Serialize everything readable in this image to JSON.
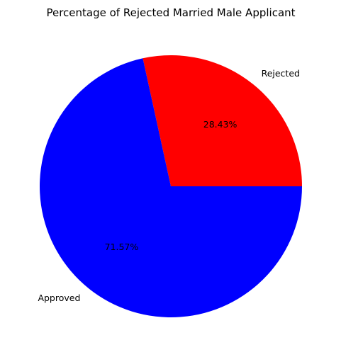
{
  "chart_data": {
    "type": "pie",
    "title": "Percentage of Rejected Married Male Applicant",
    "slices": [
      {
        "label": "Rejected",
        "value": 28.43,
        "pct_label": "28.43%",
        "color": "#ff0000"
      },
      {
        "label": "Approved",
        "value": 71.57,
        "pct_label": "71.57%",
        "color": "#0000ff"
      }
    ],
    "start_angle_deg": 0,
    "direction": "counterclockwise",
    "legend": "none"
  }
}
